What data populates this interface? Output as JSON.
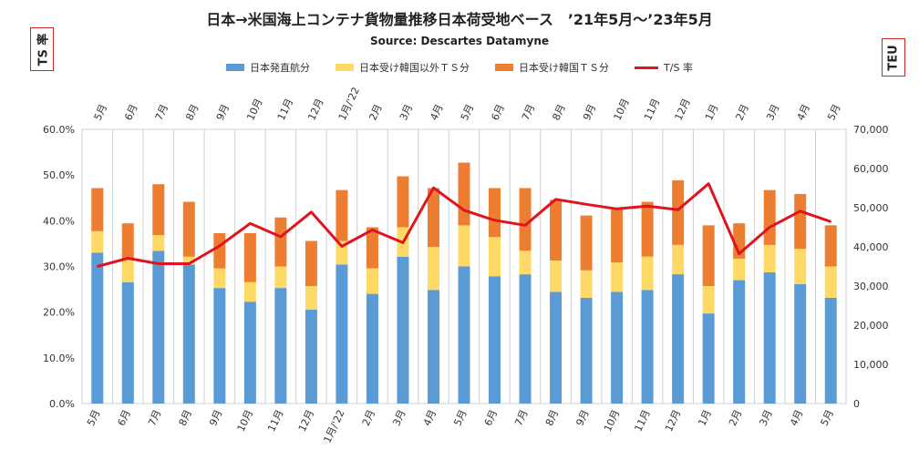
{
  "chart_data": {
    "type": "bar",
    "title": "日本→米国海上コンテナ貨物量推移日本荷受地ベース　’21年5月～’23年5月",
    "subtitle": "Source: Descartes Datamyne",
    "left_axis_label": "TS 率",
    "right_axis_label": "TEU",
    "categories": [
      "5月",
      "6月",
      "7月",
      "8月",
      "9月",
      "10月",
      "11月",
      "12月",
      "1月/'22",
      "2月",
      "3月",
      "4月",
      "5月",
      "6月",
      "7月",
      "8月",
      "9月",
      "10月",
      "11月",
      "12月",
      "1月",
      "2月",
      "3月",
      "4月",
      "5月"
    ],
    "series": [
      {
        "name": "日本発直航分",
        "color": "#5b9bd5",
        "axis": "right",
        "values": [
          38500,
          31000,
          39000,
          35500,
          29500,
          26000,
          29500,
          24000,
          35500,
          28000,
          37500,
          29000,
          35000,
          32500,
          33000,
          28500,
          27000,
          28500,
          29000,
          33000,
          23000,
          31500,
          33500,
          30500,
          27000
        ]
      },
      {
        "name": "日本受け韓国以外ＴＳ分",
        "color": "#ffd966",
        "axis": "right",
        "values": [
          5500,
          6000,
          4000,
          2000,
          5000,
          5000,
          5500,
          6000,
          6000,
          6500,
          7500,
          11000,
          10500,
          10000,
          6000,
          8000,
          7000,
          7500,
          8500,
          7500,
          7000,
          5500,
          7000,
          9000,
          8000
        ]
      },
      {
        "name": "日本受け韓国ＴＳ分",
        "color": "#ed7d31",
        "axis": "right",
        "values": [
          11000,
          9000,
          13000,
          14000,
          9000,
          12500,
          12500,
          11500,
          13000,
          10500,
          13000,
          15000,
          16000,
          12500,
          16000,
          15500,
          14000,
          14000,
          14000,
          16500,
          15500,
          9000,
          14000,
          14000,
          10500
        ]
      },
      {
        "name": "T/S 率",
        "color": "#e0141e",
        "axis": "left",
        "type": "line",
        "values": [
          30.0,
          31.8,
          30.6,
          30.6,
          34.5,
          39.4,
          36.5,
          41.9,
          34.4,
          38.0,
          35.2,
          47.2,
          42.3,
          40.1,
          39.0,
          44.7,
          43.6,
          42.6,
          43.2,
          42.4,
          48.1,
          32.8,
          38.6,
          42.1,
          39.8
        ]
      }
    ],
    "left_axis": {
      "min": 0,
      "max": 60,
      "step": 10,
      "format": "percent",
      "tick_labels": [
        "0.0%",
        "10.0%",
        "20.0%",
        "30.0%",
        "40.0%",
        "50.0%",
        "60.0%"
      ]
    },
    "right_axis": {
      "min": 0,
      "max": 70000,
      "step": 10000,
      "tick_labels": [
        "0",
        "10,000",
        "20,000",
        "30,000",
        "40,000",
        "50,000",
        "60,000",
        "70,000"
      ]
    },
    "grid": "vertical",
    "legend_position": "top",
    "category_labels_top_and_bottom": true
  }
}
